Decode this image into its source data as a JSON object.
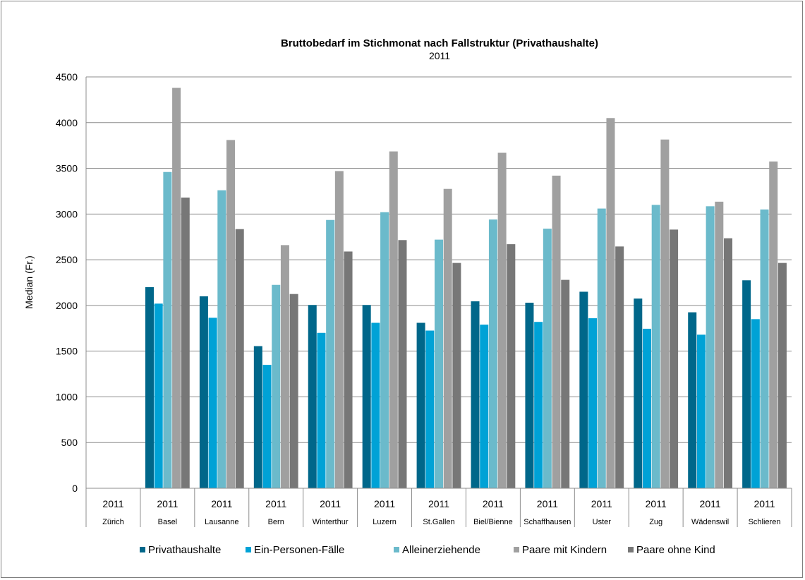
{
  "chart_data": {
    "type": "bar",
    "title": "Bruttobedarf im Stichmonat nach Fallstruktur (Privathaushalte)",
    "subtitle": "2011",
    "ylabel": "Median (Fr.)",
    "ylim": [
      0,
      4500
    ],
    "yticks": [
      0,
      500,
      1000,
      1500,
      2000,
      2500,
      3000,
      3500,
      4000,
      4500
    ],
    "grid": true,
    "legend_position": "bottom",
    "year_label": "2011",
    "categories": [
      "Zürich",
      "Basel",
      "Lausanne",
      "Bern",
      "Winterthur",
      "Luzern",
      "St.Gallen",
      "Biel/Bienne",
      "Schaffhausen",
      "Uster",
      "Zug",
      "Wädenswil",
      "Schlieren"
    ],
    "series": [
      {
        "name": "Privathaushalte",
        "color": "#00678a",
        "values": [
          null,
          2200,
          2100,
          1555,
          2005,
          2005,
          1810,
          2045,
          2030,
          2150,
          2075,
          1925,
          2275
        ]
      },
      {
        "name": "Ein-Personen-Fälle",
        "color": "#00a2d6",
        "values": [
          null,
          2020,
          1865,
          1350,
          1700,
          1810,
          1725,
          1790,
          1820,
          1860,
          1745,
          1680,
          1850
        ]
      },
      {
        "name": "Alleinerziehende",
        "color": "#6bbacb",
        "values": [
          null,
          3460,
          3260,
          2225,
          2935,
          3020,
          2720,
          2940,
          2840,
          3060,
          3100,
          3085,
          3050
        ]
      },
      {
        "name": "Paare mit Kindern",
        "color": "#a0a0a0",
        "values": [
          null,
          4380,
          3810,
          2660,
          3470,
          3685,
          3275,
          3670,
          3420,
          4050,
          3815,
          3135,
          3575
        ]
      },
      {
        "name": "Paare ohne Kind",
        "color": "#777777",
        "values": [
          null,
          3180,
          2835,
          2125,
          2590,
          2715,
          2465,
          2670,
          2280,
          2645,
          2830,
          2735,
          2465
        ]
      }
    ]
  }
}
